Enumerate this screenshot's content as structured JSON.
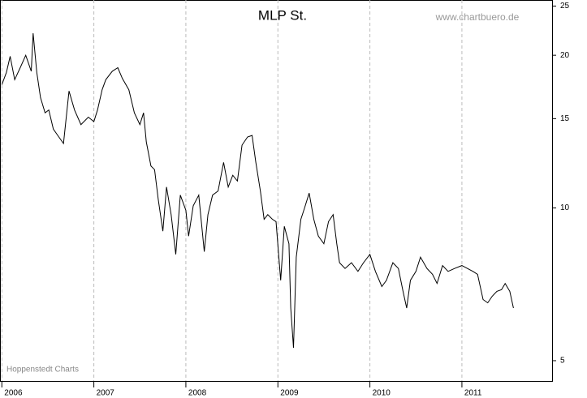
{
  "chart_data": {
    "type": "line",
    "title": "MLP St.",
    "source": "www.chartbuero.de",
    "credit": "Hoppenstedt Charts",
    "log_y": true,
    "grid": true,
    "color": "#000000",
    "xlim": [
      2005.98,
      2011.98
    ],
    "xticks": [
      2006,
      2007,
      2008,
      2009,
      2010,
      2011
    ],
    "ylim": [
      4.56,
      25.7
    ],
    "yticks": [
      5,
      10,
      15,
      20,
      25
    ],
    "x": [
      2006.0,
      2006.05,
      2006.09,
      2006.14,
      2006.2,
      2006.26,
      2006.32,
      2006.34,
      2006.38,
      2006.42,
      2006.47,
      2006.51,
      2006.56,
      2006.62,
      2006.67,
      2006.73,
      2006.79,
      2006.86,
      2006.94,
      2007.0,
      2007.04,
      2007.09,
      2007.13,
      2007.2,
      2007.26,
      2007.31,
      2007.38,
      2007.44,
      2007.5,
      2007.54,
      2007.57,
      2007.62,
      2007.66,
      2007.7,
      2007.75,
      2007.79,
      2007.84,
      2007.89,
      2007.94,
      2008.0,
      2008.03,
      2008.08,
      2008.14,
      2008.2,
      2008.24,
      2008.29,
      2008.35,
      2008.41,
      2008.46,
      2008.51,
      2008.56,
      2008.61,
      2008.67,
      2008.72,
      2008.76,
      2008.81,
      2008.85,
      2008.89,
      2008.94,
      2008.98,
      2009.03,
      2009.07,
      2009.12,
      2009.14,
      2009.17,
      2009.2,
      2009.25,
      2009.29,
      2009.34,
      2009.39,
      2009.44,
      2009.5,
      2009.55,
      2009.6,
      2009.64,
      2009.67,
      2009.73,
      2009.8,
      2009.87,
      2009.93,
      2010.0,
      2010.06,
      2010.13,
      2010.18,
      2010.25,
      2010.31,
      2010.36,
      2010.4,
      2010.44,
      2010.5,
      2010.55,
      2010.62,
      2010.68,
      2010.73,
      2010.79,
      2010.85,
      2010.92,
      2011.0,
      2011.06,
      2011.12,
      2011.17,
      2011.23,
      2011.28,
      2011.33,
      2011.38,
      2011.43,
      2011.47,
      2011.52,
      2011.56
    ],
    "values": [
      17.5,
      18.5,
      19.9,
      17.9,
      18.9,
      20.0,
      18.6,
      22.1,
      18.5,
      16.5,
      15.4,
      15.6,
      14.3,
      13.8,
      13.4,
      17.0,
      15.6,
      14.6,
      15.1,
      14.8,
      15.6,
      17.1,
      17.9,
      18.6,
      18.9,
      18.0,
      17.1,
      15.4,
      14.6,
      15.4,
      13.5,
      12.1,
      11.9,
      10.4,
      9.0,
      11.0,
      9.7,
      8.1,
      10.6,
      9.9,
      8.8,
      10.1,
      10.6,
      8.2,
      9.7,
      10.6,
      10.8,
      12.3,
      11.0,
      11.6,
      11.3,
      13.3,
      13.8,
      13.9,
      12.3,
      10.8,
      9.5,
      9.7,
      9.5,
      9.4,
      7.2,
      9.2,
      8.5,
      6.35,
      5.3,
      8.0,
      9.5,
      10.0,
      10.7,
      9.5,
      8.8,
      8.5,
      9.4,
      9.7,
      8.5,
      7.8,
      7.6,
      7.8,
      7.5,
      7.8,
      8.1,
      7.5,
      7.0,
      7.2,
      7.8,
      7.6,
      6.85,
      6.35,
      7.2,
      7.5,
      8.0,
      7.6,
      7.4,
      7.1,
      7.7,
      7.5,
      7.6,
      7.7,
      7.6,
      7.5,
      7.4,
      6.6,
      6.5,
      6.7,
      6.85,
      6.9,
      7.1,
      6.85,
      6.35
    ]
  }
}
